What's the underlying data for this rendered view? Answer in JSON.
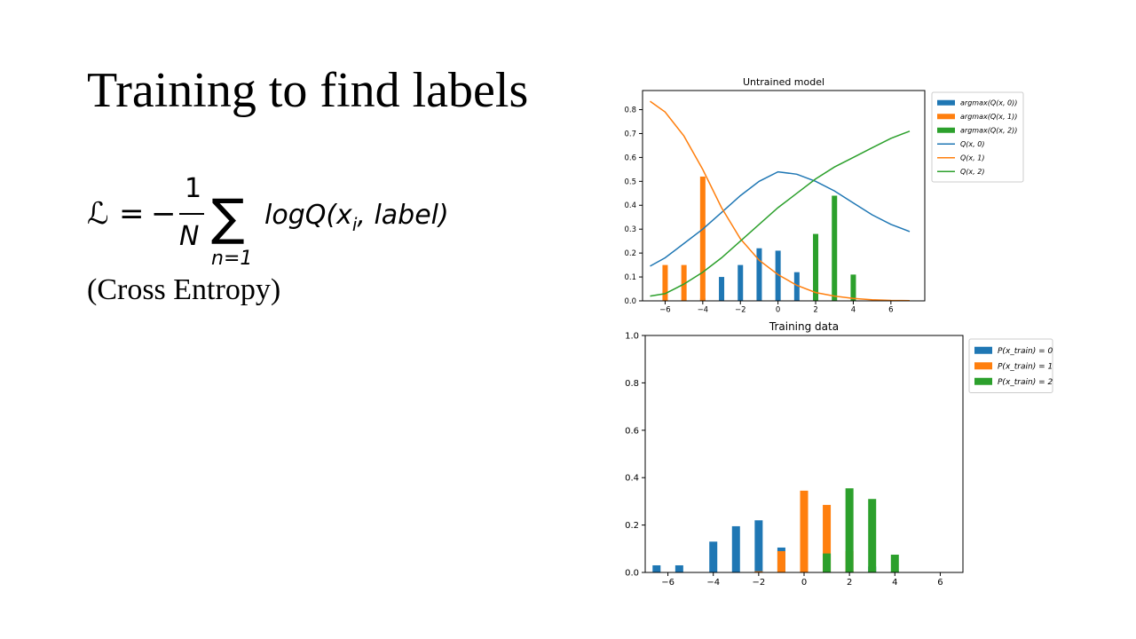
{
  "slide": {
    "title": "Training to find labels",
    "formula": {
      "lhs": "ℒ",
      "equals": "=",
      "minus": "−",
      "numerator": "1",
      "denominator": "N",
      "sigma": "∑",
      "sum_lower": "n=1",
      "summand": "logQ(x",
      "summand_sub": "i",
      "summand_tail": ", label)"
    },
    "subtitle": "(Cross Entropy)"
  },
  "chart_data": [
    {
      "type": "bar+line",
      "title": "Untrained model",
      "xlim": [
        -7.2,
        7.8
      ],
      "ylim": [
        0,
        0.88
      ],
      "xticks": [
        -6,
        -4,
        -2,
        0,
        2,
        4,
        6
      ],
      "xtick_labels": [
        "−6",
        "−4",
        "−2",
        "0",
        "2",
        "4",
        "6"
      ],
      "yticks": [
        0.0,
        0.1,
        0.2,
        0.3,
        0.4,
        0.5,
        0.6,
        0.7,
        0.8
      ],
      "ytick_labels": [
        "0.0",
        "0.1",
        "0.2",
        "0.3",
        "0.4",
        "0.5",
        "0.6",
        "0.7",
        "0.8"
      ],
      "legend_position": "outside-right-top",
      "colors": [
        "#1f77b4",
        "#ff7f0e",
        "#2ca02c"
      ],
      "bars": [
        {
          "name": "argmax(Q(x, 0))",
          "x": [
            -4,
            -3,
            -2,
            -1,
            0,
            1,
            2
          ],
          "values": [
            0.01,
            0.1,
            0.15,
            0.22,
            0.21,
            0.12,
            0.0
          ]
        },
        {
          "name": "argmax(Q(x, 1))",
          "x": [
            -6,
            -5,
            -4
          ],
          "values": [
            0.15,
            0.15,
            0.52
          ]
        },
        {
          "name": "argmax(Q(x, 2))",
          "x": [
            2,
            3,
            4
          ],
          "values": [
            0.28,
            0.44,
            0.11
          ]
        }
      ],
      "lines": [
        {
          "name": "Q(x, 0)",
          "x": [
            -6.8,
            -6,
            -5,
            -4,
            -3,
            -2,
            -1,
            0,
            1,
            2,
            3,
            4,
            5,
            6,
            7
          ],
          "values": [
            0.145,
            0.18,
            0.24,
            0.3,
            0.37,
            0.44,
            0.5,
            0.54,
            0.53,
            0.5,
            0.46,
            0.41,
            0.36,
            0.32,
            0.29
          ]
        },
        {
          "name": "Q(x, 1)",
          "x": [
            -6.8,
            -6,
            -5,
            -4,
            -3,
            -2,
            -1,
            0,
            1,
            2,
            3,
            4,
            5,
            6,
            7
          ],
          "values": [
            0.835,
            0.79,
            0.69,
            0.55,
            0.39,
            0.26,
            0.17,
            0.11,
            0.065,
            0.035,
            0.02,
            0.01,
            0.005,
            0.002,
            0.001
          ]
        },
        {
          "name": "Q(x, 2)",
          "x": [
            -6.8,
            -6,
            -5,
            -4,
            -3,
            -2,
            -1,
            0,
            1,
            2,
            3,
            4,
            5,
            6,
            7
          ],
          "values": [
            0.02,
            0.03,
            0.07,
            0.12,
            0.18,
            0.25,
            0.32,
            0.39,
            0.45,
            0.51,
            0.56,
            0.6,
            0.64,
            0.68,
            0.71
          ]
        }
      ]
    },
    {
      "type": "bar",
      "title": "Training data",
      "xlim": [
        -7.0,
        7.0
      ],
      "ylim": [
        0,
        1.0
      ],
      "xticks": [
        -6,
        -4,
        -2,
        0,
        2,
        4,
        6
      ],
      "xtick_labels": [
        "−6",
        "−4",
        "−2",
        "0",
        "2",
        "4",
        "6"
      ],
      "yticks": [
        0.0,
        0.2,
        0.4,
        0.6,
        0.8,
        1.0
      ],
      "ytick_labels": [
        "0.0",
        "0.2",
        "0.4",
        "0.6",
        "0.8",
        "1.0"
      ],
      "legend_position": "outside-right-top",
      "colors": [
        "#1f77b4",
        "#ff7f0e",
        "#2ca02c"
      ],
      "bars": [
        {
          "name": "P(x_train) = 0",
          "x": [
            -6.5,
            -5.5,
            -4,
            -3,
            -2,
            -1,
            0,
            1,
            2,
            3,
            4,
            5
          ],
          "values": [
            0.03,
            0.03,
            0.13,
            0.195,
            0.22,
            0.105,
            0.055,
            0.005,
            0.005,
            0.025,
            0.005,
            0.0
          ]
        },
        {
          "name": "P(x_train) = 1",
          "x": [
            -2,
            -1,
            0,
            1,
            2,
            3
          ],
          "values": [
            0.005,
            0.09,
            0.345,
            0.285,
            0.09,
            0.0
          ]
        },
        {
          "name": "P(x_train) = 2",
          "x": [
            1,
            2,
            3,
            4
          ],
          "values": [
            0.08,
            0.355,
            0.31,
            0.075
          ]
        }
      ]
    }
  ]
}
